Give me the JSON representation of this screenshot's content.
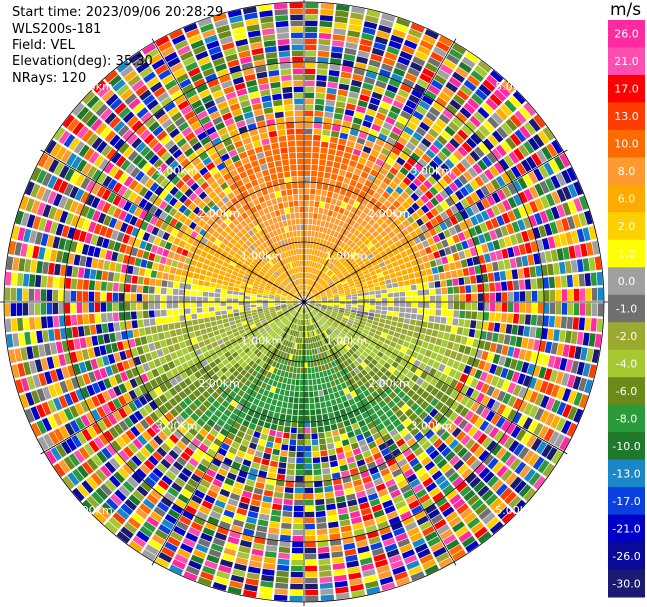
{
  "header": {
    "start_time": "Start time: 2023/09/06 20:28:29",
    "instrument": "WLS200s-181",
    "field": "Field: VEL",
    "elevation": "Elevation(deg): 35.30",
    "nrays": "NRays: 120"
  },
  "colorbar": {
    "unit": "m/s",
    "ticks": [
      "26.0",
      "21.0",
      "17.0",
      "13.0",
      "10.0",
      "8.0",
      "6.0",
      "2.0",
      "1.0",
      "0.0",
      "-1.0",
      "-2.0",
      "-4.0",
      "-6.0",
      "-8.0",
      "-10.0",
      "-13.0",
      "-17.0",
      "-21.0",
      "-26.0",
      "-30.0"
    ],
    "colors": [
      "#ff2aa0",
      "#ff4db0",
      "#ff0000",
      "#ff3c00",
      "#ff6a00",
      "#ff9a30",
      "#ffaa00",
      "#ffd000",
      "#ffff00",
      "#a0a0a0",
      "#707070",
      "#9aaa30",
      "#a6c830",
      "#6a8a1a",
      "#2a9a3a",
      "#1e7a2a",
      "#1a88c8",
      "#0a40e0",
      "#0000c8",
      "#0a0a9a",
      "#1a1a70"
    ]
  },
  "chart_data": {
    "type": "heatmap",
    "projection": "PPI polar scan",
    "field": "VEL",
    "units": "m/s",
    "nrays": 120,
    "range_rings_km": [
      1.0,
      2.0,
      3.0,
      5.0
    ],
    "range_labels": [
      "1.00km",
      "2.00km",
      "3.00km",
      "5.00km"
    ],
    "colorbar_range": [
      -30.0,
      26.0
    ],
    "pattern": "near range (<~2.7 km): positive (yellow/orange) velocities toward north, negative (green) toward south, grey near zero along east-west; far range: noisy random colors"
  }
}
